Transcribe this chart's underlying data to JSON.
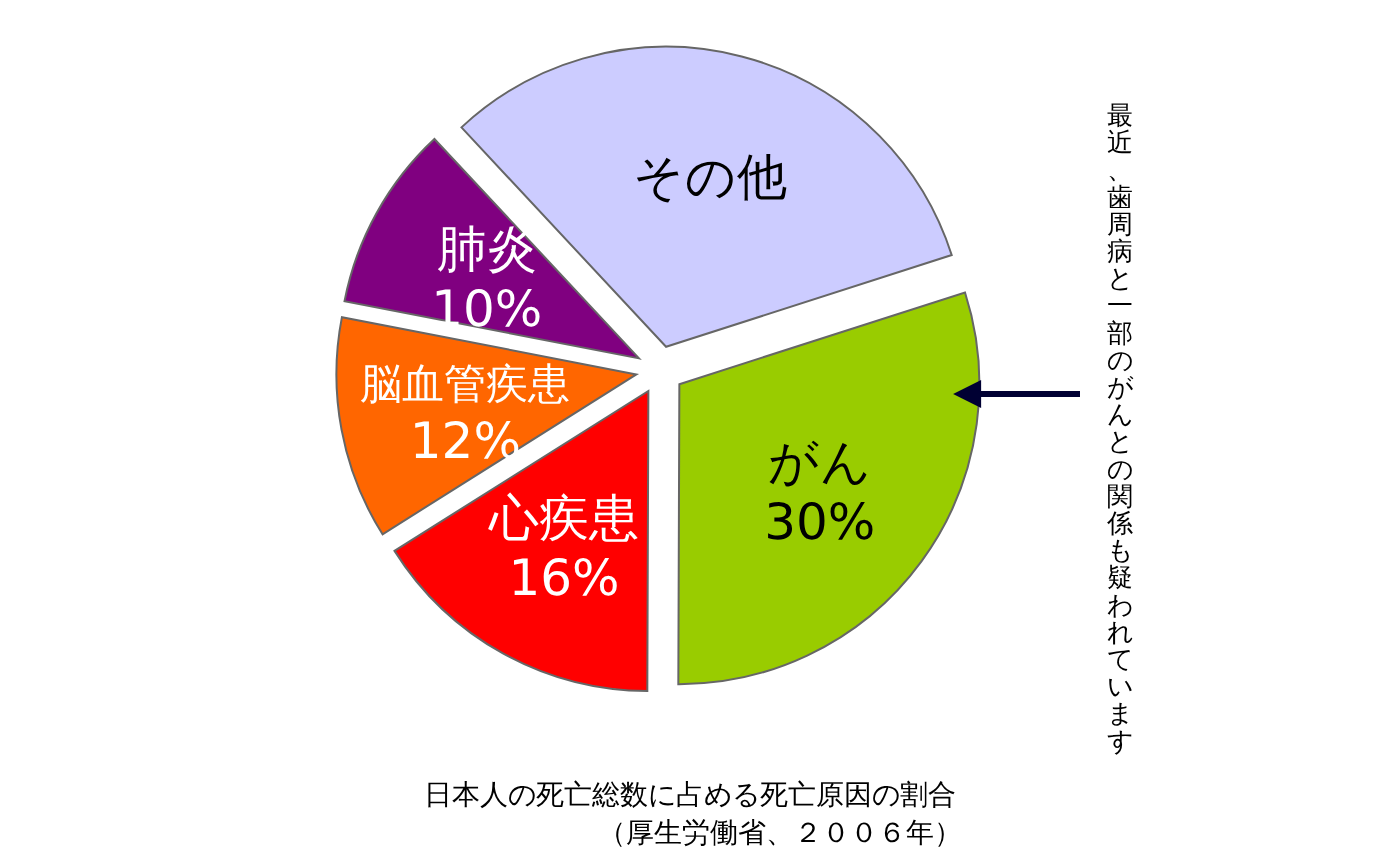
{
  "chart_data": {
    "type": "pie",
    "title": "日本人の死亡総数に占める死亡原因の割合",
    "subtitle": "（厚生労働省、２００６年）",
    "categories": [
      "その他",
      "がん",
      "心疾患",
      "脳血管疾患",
      "肺炎"
    ],
    "values": [
      32,
      30,
      16,
      12,
      10
    ],
    "value_labels": [
      null,
      "30%",
      "16%",
      "12%",
      "10%"
    ],
    "colors": [
      "#ccccff",
      "#99cc00",
      "#ff0000",
      "#ff6600",
      "#800080"
    ],
    "annotations": [
      {
        "text": "最近、歯周病と一部のがんとの関係も疑われています",
        "x": "がん"
      }
    ]
  }
}
